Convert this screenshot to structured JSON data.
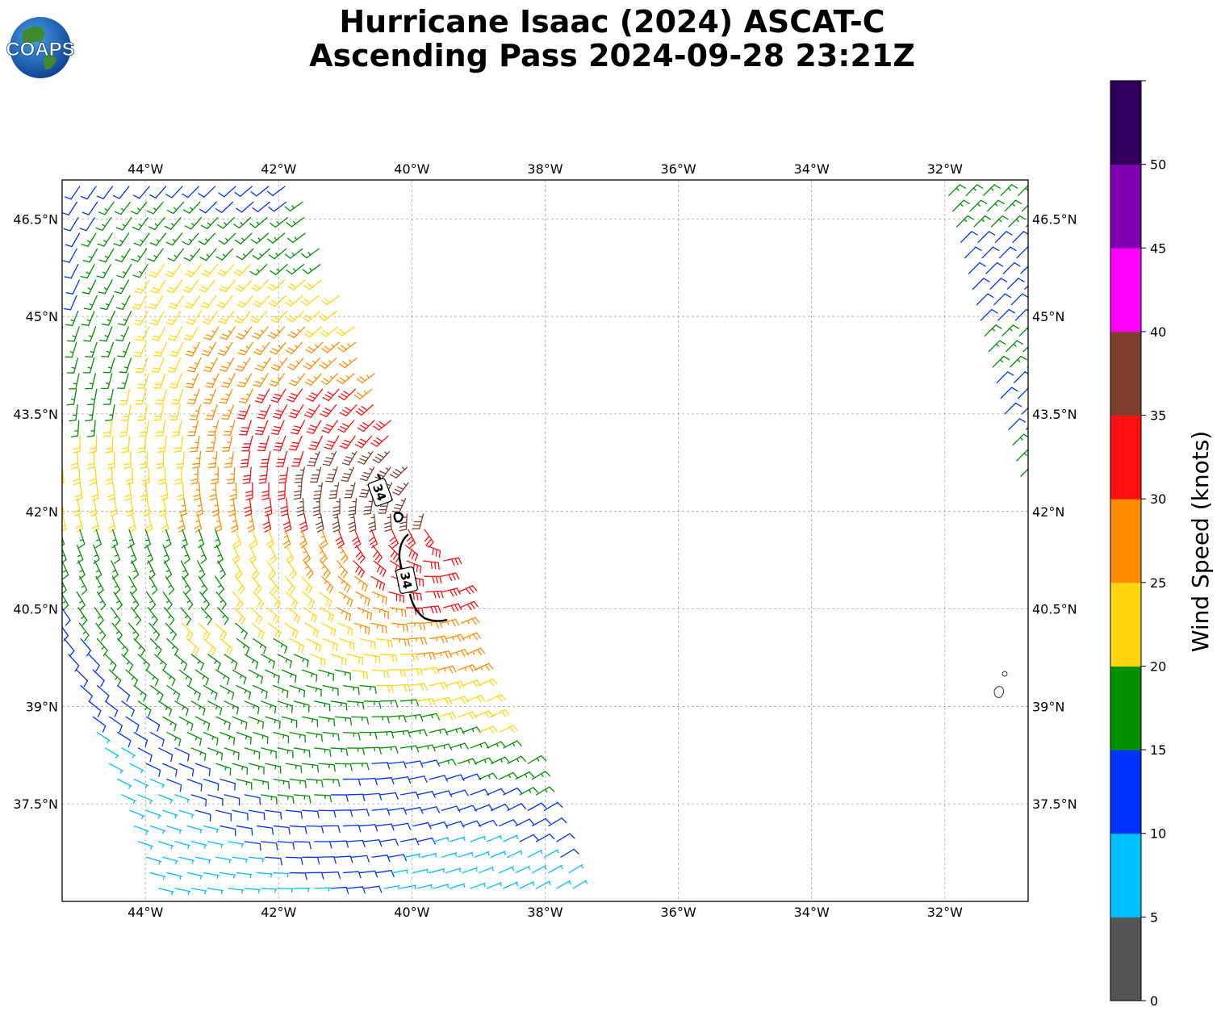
{
  "title": {
    "line1": "Hurricane Isaac (2024) ASCAT-C",
    "line2": "Ascending Pass 2024-09-28 23:21Z"
  },
  "logo": {
    "text": "COAPS",
    "icon": "globe-logo-icon"
  },
  "map": {
    "lon_range": [
      -45.25,
      -30.75
    ],
    "lat_range": [
      36.0,
      47.1
    ],
    "lon_ticks": [
      {
        "value": -44,
        "label": "44°W"
      },
      {
        "value": -42,
        "label": "42°W"
      },
      {
        "value": -40,
        "label": "40°W"
      },
      {
        "value": -38,
        "label": "38°W"
      },
      {
        "value": -36,
        "label": "36°W"
      },
      {
        "value": -34,
        "label": "34°W"
      },
      {
        "value": -32,
        "label": "32°W"
      }
    ],
    "lat_ticks": [
      {
        "value": 46.5,
        "label": "46.5°N"
      },
      {
        "value": 45.0,
        "label": "45°N"
      },
      {
        "value": 43.5,
        "label": "43.5°N"
      },
      {
        "value": 42.0,
        "label": "42°N"
      },
      {
        "value": 40.5,
        "label": "40.5°N"
      },
      {
        "value": 39.0,
        "label": "39°N"
      },
      {
        "value": 37.5,
        "label": "37.5°N"
      }
    ],
    "gridlines": true,
    "storm_center": {
      "lon": -39.5,
      "lat": 41.8
    },
    "contour_label": "34",
    "island_outline": "Azores islands near 31.2°W, 39.5°N"
  },
  "colorbar": {
    "label": "Wind Speed (knots)",
    "ticks": [
      "0",
      "5",
      "10",
      "15",
      "20",
      "25",
      "30",
      "35",
      "40",
      "45",
      "50"
    ],
    "bins": [
      {
        "min": 0,
        "max": 5,
        "color": "#555555"
      },
      {
        "min": 5,
        "max": 10,
        "color": "#00bfff"
      },
      {
        "min": 10,
        "max": 15,
        "color": "#0033ff"
      },
      {
        "min": 15,
        "max": 20,
        "color": "#009000"
      },
      {
        "min": 20,
        "max": 25,
        "color": "#ffd510"
      },
      {
        "min": 25,
        "max": 30,
        "color": "#ff8c00"
      },
      {
        "min": 30,
        "max": 35,
        "color": "#ff1010"
      },
      {
        "min": 35,
        "max": 40,
        "color": "#7f3f2f"
      },
      {
        "min": 40,
        "max": 45,
        "color": "#ff00ff"
      },
      {
        "min": 45,
        "max": 50,
        "color": "#8000b0"
      },
      {
        "min": 50,
        "max": 55,
        "color": "#300060"
      }
    ]
  }
}
